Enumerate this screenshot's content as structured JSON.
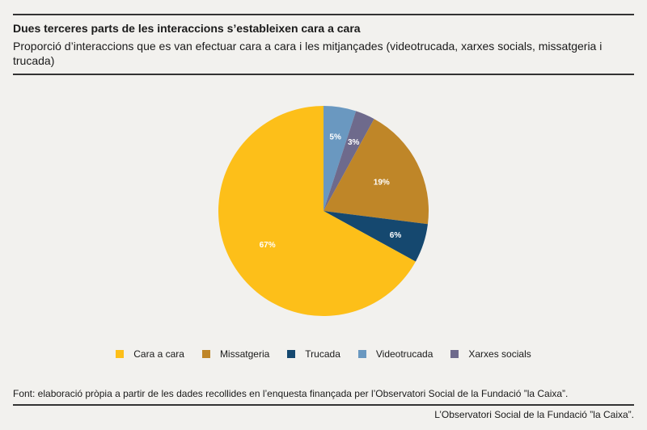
{
  "title": "Dues terceres parts de les interaccions s’estableixen cara a cara",
  "subtitle": "Proporció d’interaccions que es van efectuar cara a cara i les mitjançades (videotrucada, xarxes socials, missatgeria i trucada)",
  "source": "Font: elaboració pròpia a partir de les dades recollides en l’enquesta finançada per l’Observatori Social de la Fundació ”la Caixa”.",
  "credit": "L’Observatori Social de la Fundació ”la Caixa”.",
  "chart_data": {
    "type": "pie",
    "start_angle_deg": 0,
    "direction": "clockwise",
    "legend_position": "bottom",
    "slices": [
      {
        "name": "Videotrucada",
        "value": 5,
        "label": "5%",
        "color": "#6a98c0"
      },
      {
        "name": "Xarxes socials",
        "value": 3,
        "label": "3%",
        "color": "#6e6a8c"
      },
      {
        "name": "Missatgeria",
        "value": 19,
        "label": "19%",
        "color": "#bf8628"
      },
      {
        "name": "Trucada",
        "value": 6,
        "label": "6%",
        "color": "#15486f"
      },
      {
        "name": "Cara a cara",
        "value": 67,
        "label": "67%",
        "color": "#fdbf19"
      }
    ],
    "legend": [
      {
        "name": "Cara a cara",
        "color": "#fdbf19"
      },
      {
        "name": "Missatgeria",
        "color": "#bf8628"
      },
      {
        "name": "Trucada",
        "color": "#15486f"
      },
      {
        "name": "Videotrucada",
        "color": "#6a98c0"
      },
      {
        "name": "Xarxes socials",
        "color": "#6e6a8c"
      }
    ]
  }
}
